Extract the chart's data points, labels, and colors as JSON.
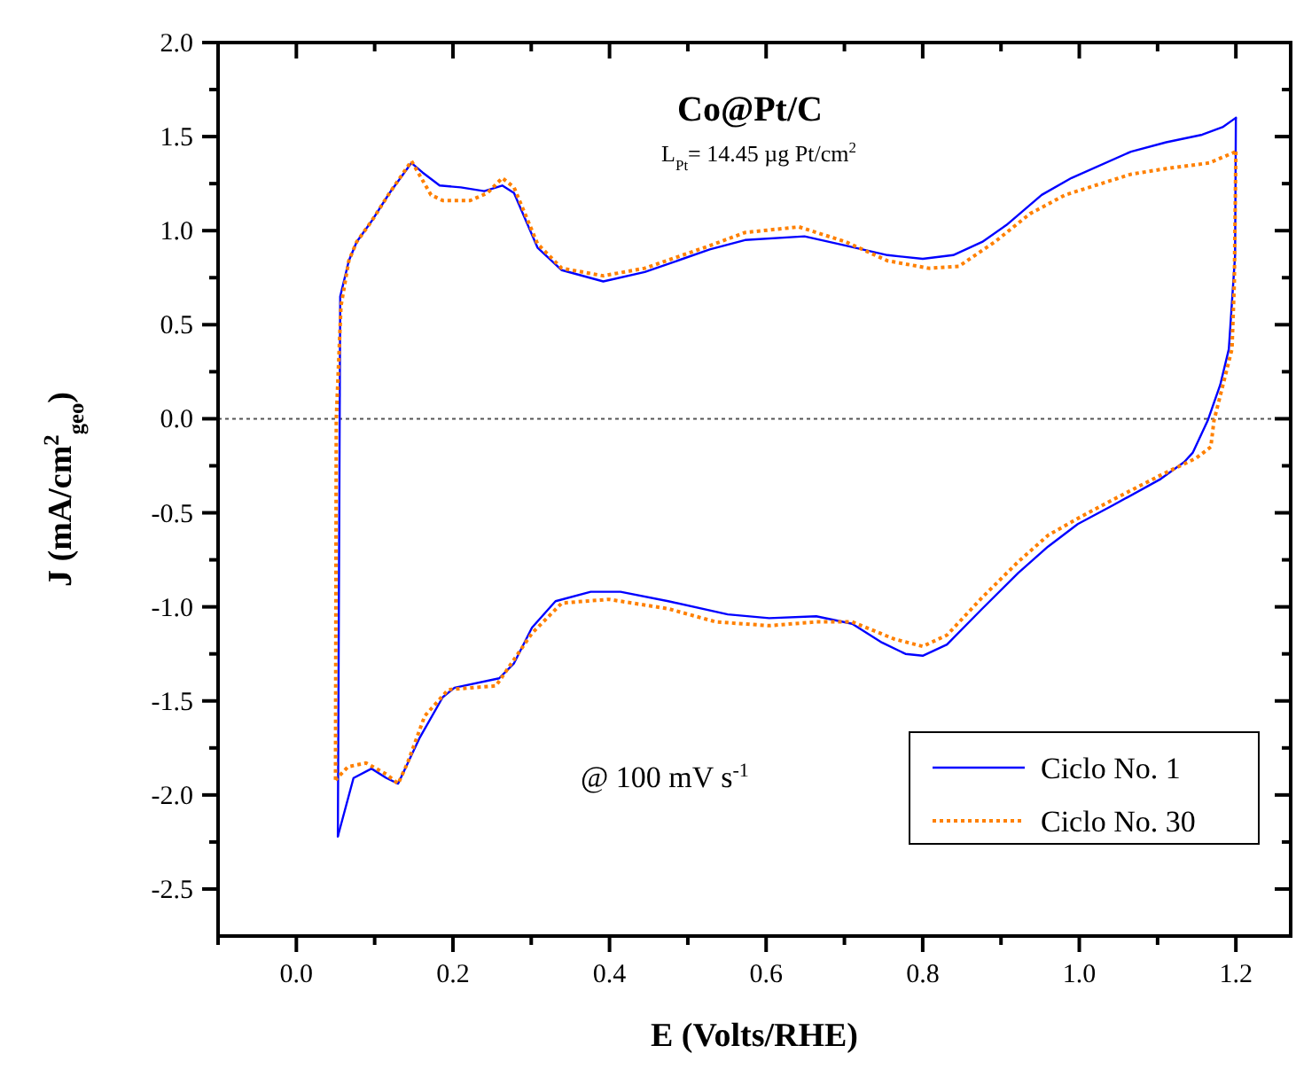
{
  "chart_data": {
    "type": "line",
    "title": "Co@Pt/C",
    "subtitle": "L$_{Pt}$= 14.45 µg Pt/cm$^{2}$",
    "xlabel": "E (Volts/RHE)",
    "ylabel": "J (mA/cm$^{2}$$_{geo}$)",
    "annotations": [
      "@ 100 mV s$^{-1}$"
    ],
    "xlim": [
      -0.1,
      1.27
    ],
    "ylim": [
      -2.75,
      2.0
    ],
    "xticks": [
      {
        "value": -0.1,
        "label": null
      },
      {
        "value": 0,
        "label": "0.0"
      },
      {
        "value": 0.1,
        "label": null
      },
      {
        "value": 0.2,
        "label": "0.2"
      },
      {
        "value": 0.3,
        "label": null
      },
      {
        "value": 0.4,
        "label": "0.4"
      },
      {
        "value": 0.5,
        "label": null
      },
      {
        "value": 0.6,
        "label": "0.6"
      },
      {
        "value": 0.7,
        "label": null
      },
      {
        "value": 0.8,
        "label": "0.8"
      },
      {
        "value": 0.9,
        "label": null
      },
      {
        "value": 1.0,
        "label": "1.0"
      },
      {
        "value": 1.1,
        "label": null
      },
      {
        "value": 1.2,
        "label": "1.2"
      }
    ],
    "yticks": [
      {
        "value": 2,
        "label": "2.0"
      },
      {
        "value": 1.75,
        "label": null
      },
      {
        "value": 1.5,
        "label": "1.5"
      },
      {
        "value": 1.25,
        "label": null
      },
      {
        "value": 1,
        "label": "1.0"
      },
      {
        "value": 0.75,
        "label": null
      },
      {
        "value": 0.5,
        "label": "0.5"
      },
      {
        "value": 0.25,
        "label": null
      },
      {
        "value": 0,
        "label": "0.0"
      },
      {
        "value": -0.25,
        "label": null
      },
      {
        "value": -0.5,
        "label": "-0.5"
      },
      {
        "value": -0.75,
        "label": null
      },
      {
        "value": -1,
        "label": "-1.0"
      },
      {
        "value": -1.25,
        "label": null
      },
      {
        "value": -1.5,
        "label": "-1.5"
      },
      {
        "value": -1.75,
        "label": null
      },
      {
        "value": -2,
        "label": "-2.0"
      },
      {
        "value": -2.25,
        "label": null
      },
      {
        "value": -2.5,
        "label": "-2.5"
      }
    ],
    "ref_lines": [
      {
        "axis": "y",
        "value": 0,
        "line_style": "dotted",
        "color": "#555555"
      }
    ],
    "grid": false,
    "legend": "bottom right",
    "marker": "none",
    "series": [
      {
        "name": "Ciclo No. 1",
        "color": "#0000ff",
        "line_style": "solid",
        "x": [
          0.053,
          0.055,
          0.056,
          0.067,
          0.077,
          0.096,
          0.119,
          0.147,
          0.161,
          0.183,
          0.21,
          0.24,
          0.263,
          0.278,
          0.308,
          0.339,
          0.392,
          0.445,
          0.528,
          0.573,
          0.649,
          0.702,
          0.755,
          0.8,
          0.839,
          0.876,
          0.907,
          0.952,
          0.99,
          1.066,
          1.111,
          1.157,
          1.183,
          1.2
        ],
        "values": [
          -2.22,
          -0.32,
          0.65,
          0.84,
          0.94,
          1.05,
          1.2,
          1.36,
          1.31,
          1.24,
          1.23,
          1.21,
          1.24,
          1.2,
          0.91,
          0.79,
          0.73,
          0.78,
          0.9,
          0.95,
          0.97,
          0.92,
          0.87,
          0.85,
          0.87,
          0.94,
          1.03,
          1.19,
          1.28,
          1.42,
          1.47,
          1.51,
          1.55,
          1.6
        ]
      },
      {
        "color": "#0000ff",
        "line_style": "solid",
        "x": [
          1.2,
          1.199,
          1.191,
          1.18,
          1.164,
          1.145,
          1.134,
          1.104,
          1.043,
          0.998,
          0.96,
          0.922,
          0.876,
          0.831,
          0.8,
          0.778,
          0.748,
          0.71,
          0.664,
          0.604,
          0.551,
          0.475,
          0.414,
          0.376,
          0.331,
          0.301,
          0.278,
          0.259,
          0.202,
          0.187,
          0.157,
          0.13,
          0.115,
          0.096,
          0.073,
          0.053
        ],
        "values": [
          1.6,
          0.87,
          0.37,
          0.18,
          -0.01,
          -0.18,
          -0.23,
          -0.32,
          -0.46,
          -0.56,
          -0.68,
          -0.82,
          -1.01,
          -1.2,
          -1.26,
          -1.25,
          -1.19,
          -1.09,
          -1.05,
          -1.06,
          -1.04,
          -0.97,
          -0.92,
          -0.92,
          -0.97,
          -1.11,
          -1.3,
          -1.38,
          -1.43,
          -1.48,
          -1.7,
          -1.94,
          -1.91,
          -1.86,
          -1.91,
          -2.22
        ]
      },
      {
        "name": "Ciclo No. 30",
        "color": "#ff8000",
        "line_style": "dotted",
        "x": [
          0.05,
          0.051,
          0.057,
          0.067,
          0.077,
          0.096,
          0.119,
          0.147,
          0.172,
          0.187,
          0.222,
          0.244,
          0.263,
          0.278,
          0.308,
          0.339,
          0.392,
          0.445,
          0.528,
          0.573,
          0.642,
          0.702,
          0.755,
          0.808,
          0.846,
          0.892,
          0.937,
          0.982,
          1.066,
          1.111,
          1.166,
          1.2
        ],
        "values": [
          -1.92,
          0.0,
          0.6,
          0.84,
          0.94,
          1.05,
          1.2,
          1.37,
          1.19,
          1.16,
          1.16,
          1.2,
          1.28,
          1.23,
          0.93,
          0.8,
          0.76,
          0.8,
          0.92,
          0.99,
          1.02,
          0.94,
          0.84,
          0.8,
          0.81,
          0.94,
          1.09,
          1.19,
          1.3,
          1.33,
          1.36,
          1.42
        ]
      },
      {
        "color": "#ff8000",
        "line_style": "dotted",
        "x": [
          1.2,
          1.198,
          1.195,
          1.172,
          1.168,
          1.149,
          1.104,
          1.043,
          0.998,
          0.96,
          0.922,
          0.876,
          0.831,
          0.8,
          0.763,
          0.71,
          0.664,
          0.604,
          0.536,
          0.475,
          0.399,
          0.339,
          0.301,
          0.278,
          0.255,
          0.194,
          0.164,
          0.142,
          0.13,
          0.115,
          0.089,
          0.066,
          0.05
        ],
        "values": [
          1.42,
          0.72,
          0.37,
          -0.01,
          -0.15,
          -0.21,
          -0.3,
          -0.43,
          -0.53,
          -0.62,
          -0.76,
          -0.95,
          -1.15,
          -1.21,
          -1.17,
          -1.08,
          -1.08,
          -1.1,
          -1.08,
          -1.01,
          -0.96,
          -0.98,
          -1.14,
          -1.28,
          -1.42,
          -1.44,
          -1.58,
          -1.83,
          -1.94,
          -1.89,
          -1.83,
          -1.85,
          -1.92
        ]
      }
    ]
  }
}
